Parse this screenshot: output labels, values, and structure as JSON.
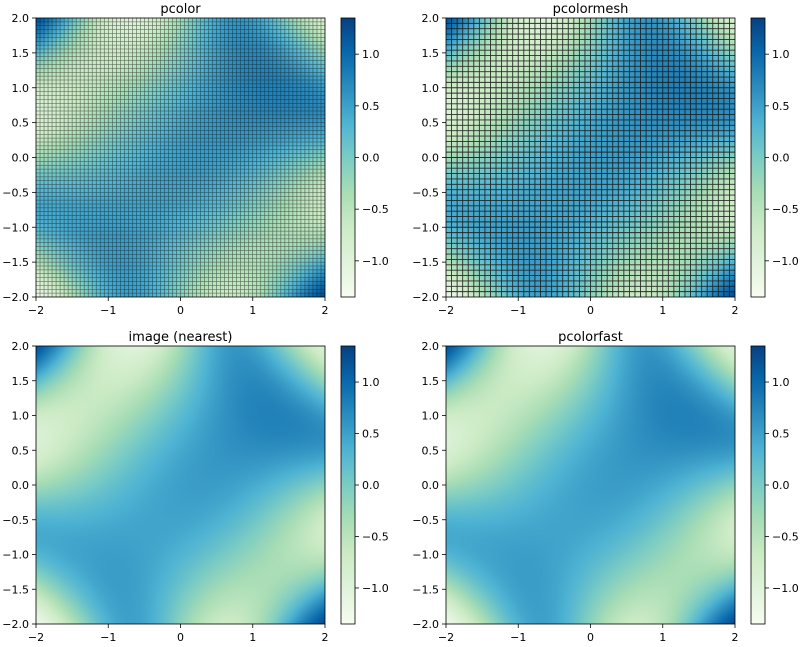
{
  "colorbar": {
    "ticks": [
      "1.0",
      "0.5",
      "0.0",
      "−0.5",
      "−1.0"
    ],
    "tick_values": [
      1.0,
      0.5,
      0.0,
      -0.5,
      -1.0
    ]
  },
  "chart_data": [
    {
      "type": "heatmap",
      "title": "pcolor",
      "colormap": "GnBu",
      "grid_lines": "thin",
      "xlim": [
        -2,
        2
      ],
      "ylim": [
        -2,
        2
      ],
      "vlim": [
        -1.35,
        1.35
      ],
      "xticks": [
        "−2",
        "−1",
        "0",
        "1",
        "2"
      ],
      "xtick_values": [
        -2,
        -1,
        0,
        1,
        2
      ],
      "yticks": [
        "2.0",
        "1.5",
        "1.0",
        "0.5",
        "0.0",
        "−0.5",
        "−1.0",
        "−1.5",
        "−2.0"
      ],
      "ytick_values": [
        2.0,
        1.5,
        1.0,
        0.5,
        0.0,
        -0.5,
        -1.0,
        -1.5,
        -2.0
      ]
    },
    {
      "type": "heatmap",
      "title": "pcolormesh",
      "colormap": "GnBu",
      "grid_lines": "thick",
      "xlim": [
        -2,
        2
      ],
      "ylim": [
        -2,
        2
      ],
      "vlim": [
        -1.35,
        1.35
      ],
      "xticks": [
        "−2",
        "−1",
        "0",
        "1",
        "2"
      ],
      "xtick_values": [
        -2,
        -1,
        0,
        1,
        2
      ],
      "yticks": [
        "2.0",
        "1.5",
        "1.0",
        "0.5",
        "0.0",
        "−0.5",
        "−1.0",
        "−1.5",
        "−2.0"
      ],
      "ytick_values": [
        2.0,
        1.5,
        1.0,
        0.5,
        0.0,
        -0.5,
        -1.0,
        -1.5,
        -2.0
      ]
    },
    {
      "type": "heatmap",
      "title": "image (nearest)",
      "colormap": "GnBu",
      "grid_lines": "none",
      "xlim": [
        -2,
        2
      ],
      "ylim": [
        -2,
        2
      ],
      "vlim": [
        -1.35,
        1.35
      ],
      "xticks": [
        "−2",
        "−1",
        "0",
        "1",
        "2"
      ],
      "xtick_values": [
        -2,
        -1,
        0,
        1,
        2
      ],
      "yticks": [
        "2.0",
        "1.5",
        "1.0",
        "0.5",
        "0.0",
        "−0.5",
        "−1.0",
        "−1.5",
        "−2.0"
      ],
      "ytick_values": [
        2.0,
        1.5,
        1.0,
        0.5,
        0.0,
        -0.5,
        -1.0,
        -1.5,
        -2.0
      ]
    },
    {
      "type": "heatmap",
      "title": "pcolorfast",
      "colormap": "GnBu",
      "grid_lines": "none",
      "xlim": [
        -2,
        2
      ],
      "ylim": [
        -2,
        2
      ],
      "vlim": [
        -1.35,
        1.35
      ],
      "xticks": [
        "−2",
        "−1",
        "0",
        "1",
        "2"
      ],
      "xtick_values": [
        -2,
        -1,
        0,
        1,
        2
      ],
      "yticks": [
        "2.0",
        "1.5",
        "1.0",
        "0.5",
        "0.0",
        "−0.5",
        "−1.0",
        "−1.5",
        "−2.0"
      ],
      "ytick_values": [
        2.0,
        1.5,
        1.0,
        0.5,
        0.0,
        -0.5,
        -1.0,
        -1.5,
        -2.0
      ]
    }
  ]
}
